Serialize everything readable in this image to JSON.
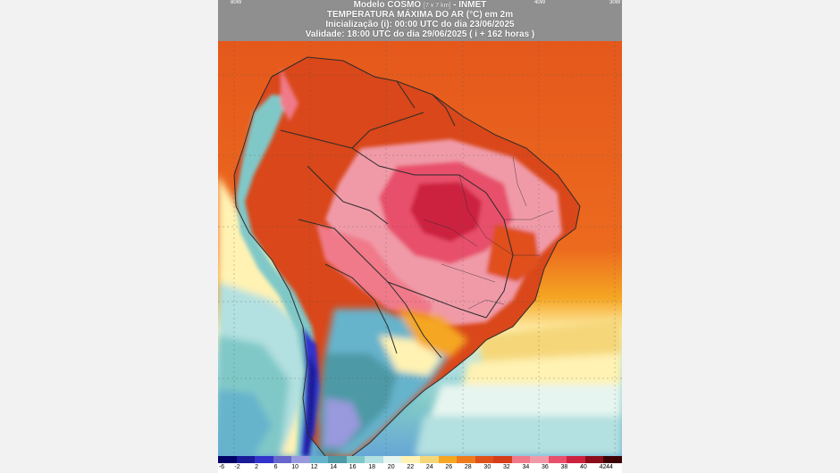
{
  "header": {
    "line1_main": "Modelo COSMO",
    "line1_small": "[7 x 7 km]",
    "line1_tail": "- INMET",
    "line2": "TEMPERATURA MÁXIMA DO AR (°C) em 2m",
    "line3": "Inicialização (i): 00:00 UTC do dia 23/06/2025",
    "line4": "Validade: 18:00 UTC do dia 29/06/2025 ( i + 162 horas )"
  },
  "longitude_labels": [
    "80W",
    "40W",
    "30W"
  ],
  "colors": {
    "header_bg": "#8f8f8f",
    "ocean_north": "#e5581c",
    "border_lines": "#2b2b2b"
  },
  "legend": {
    "labels": [
      "-6",
      "-2",
      "2",
      "6",
      "10",
      "12",
      "14",
      "16",
      "18",
      "20",
      "22",
      "24",
      "26",
      "28",
      "30",
      "32",
      "34",
      "36",
      "38",
      "40",
      "42",
      "44"
    ],
    "colors": [
      "#000066",
      "#1a1a99",
      "#3333cc",
      "#6666cc",
      "#9999dd",
      "#66b3cc",
      "#4d99a6",
      "#80c8c8",
      "#b3e0e0",
      "#e6f5f0",
      "#fff2b3",
      "#f5d77a",
      "#f5a623",
      "#ee7c1c",
      "#e0501a",
      "#d63d1a",
      "#f07a8a",
      "#f09aa8",
      "#e84f6a",
      "#cc2240",
      "#8c0d1a",
      "#3d0006"
    ]
  }
}
